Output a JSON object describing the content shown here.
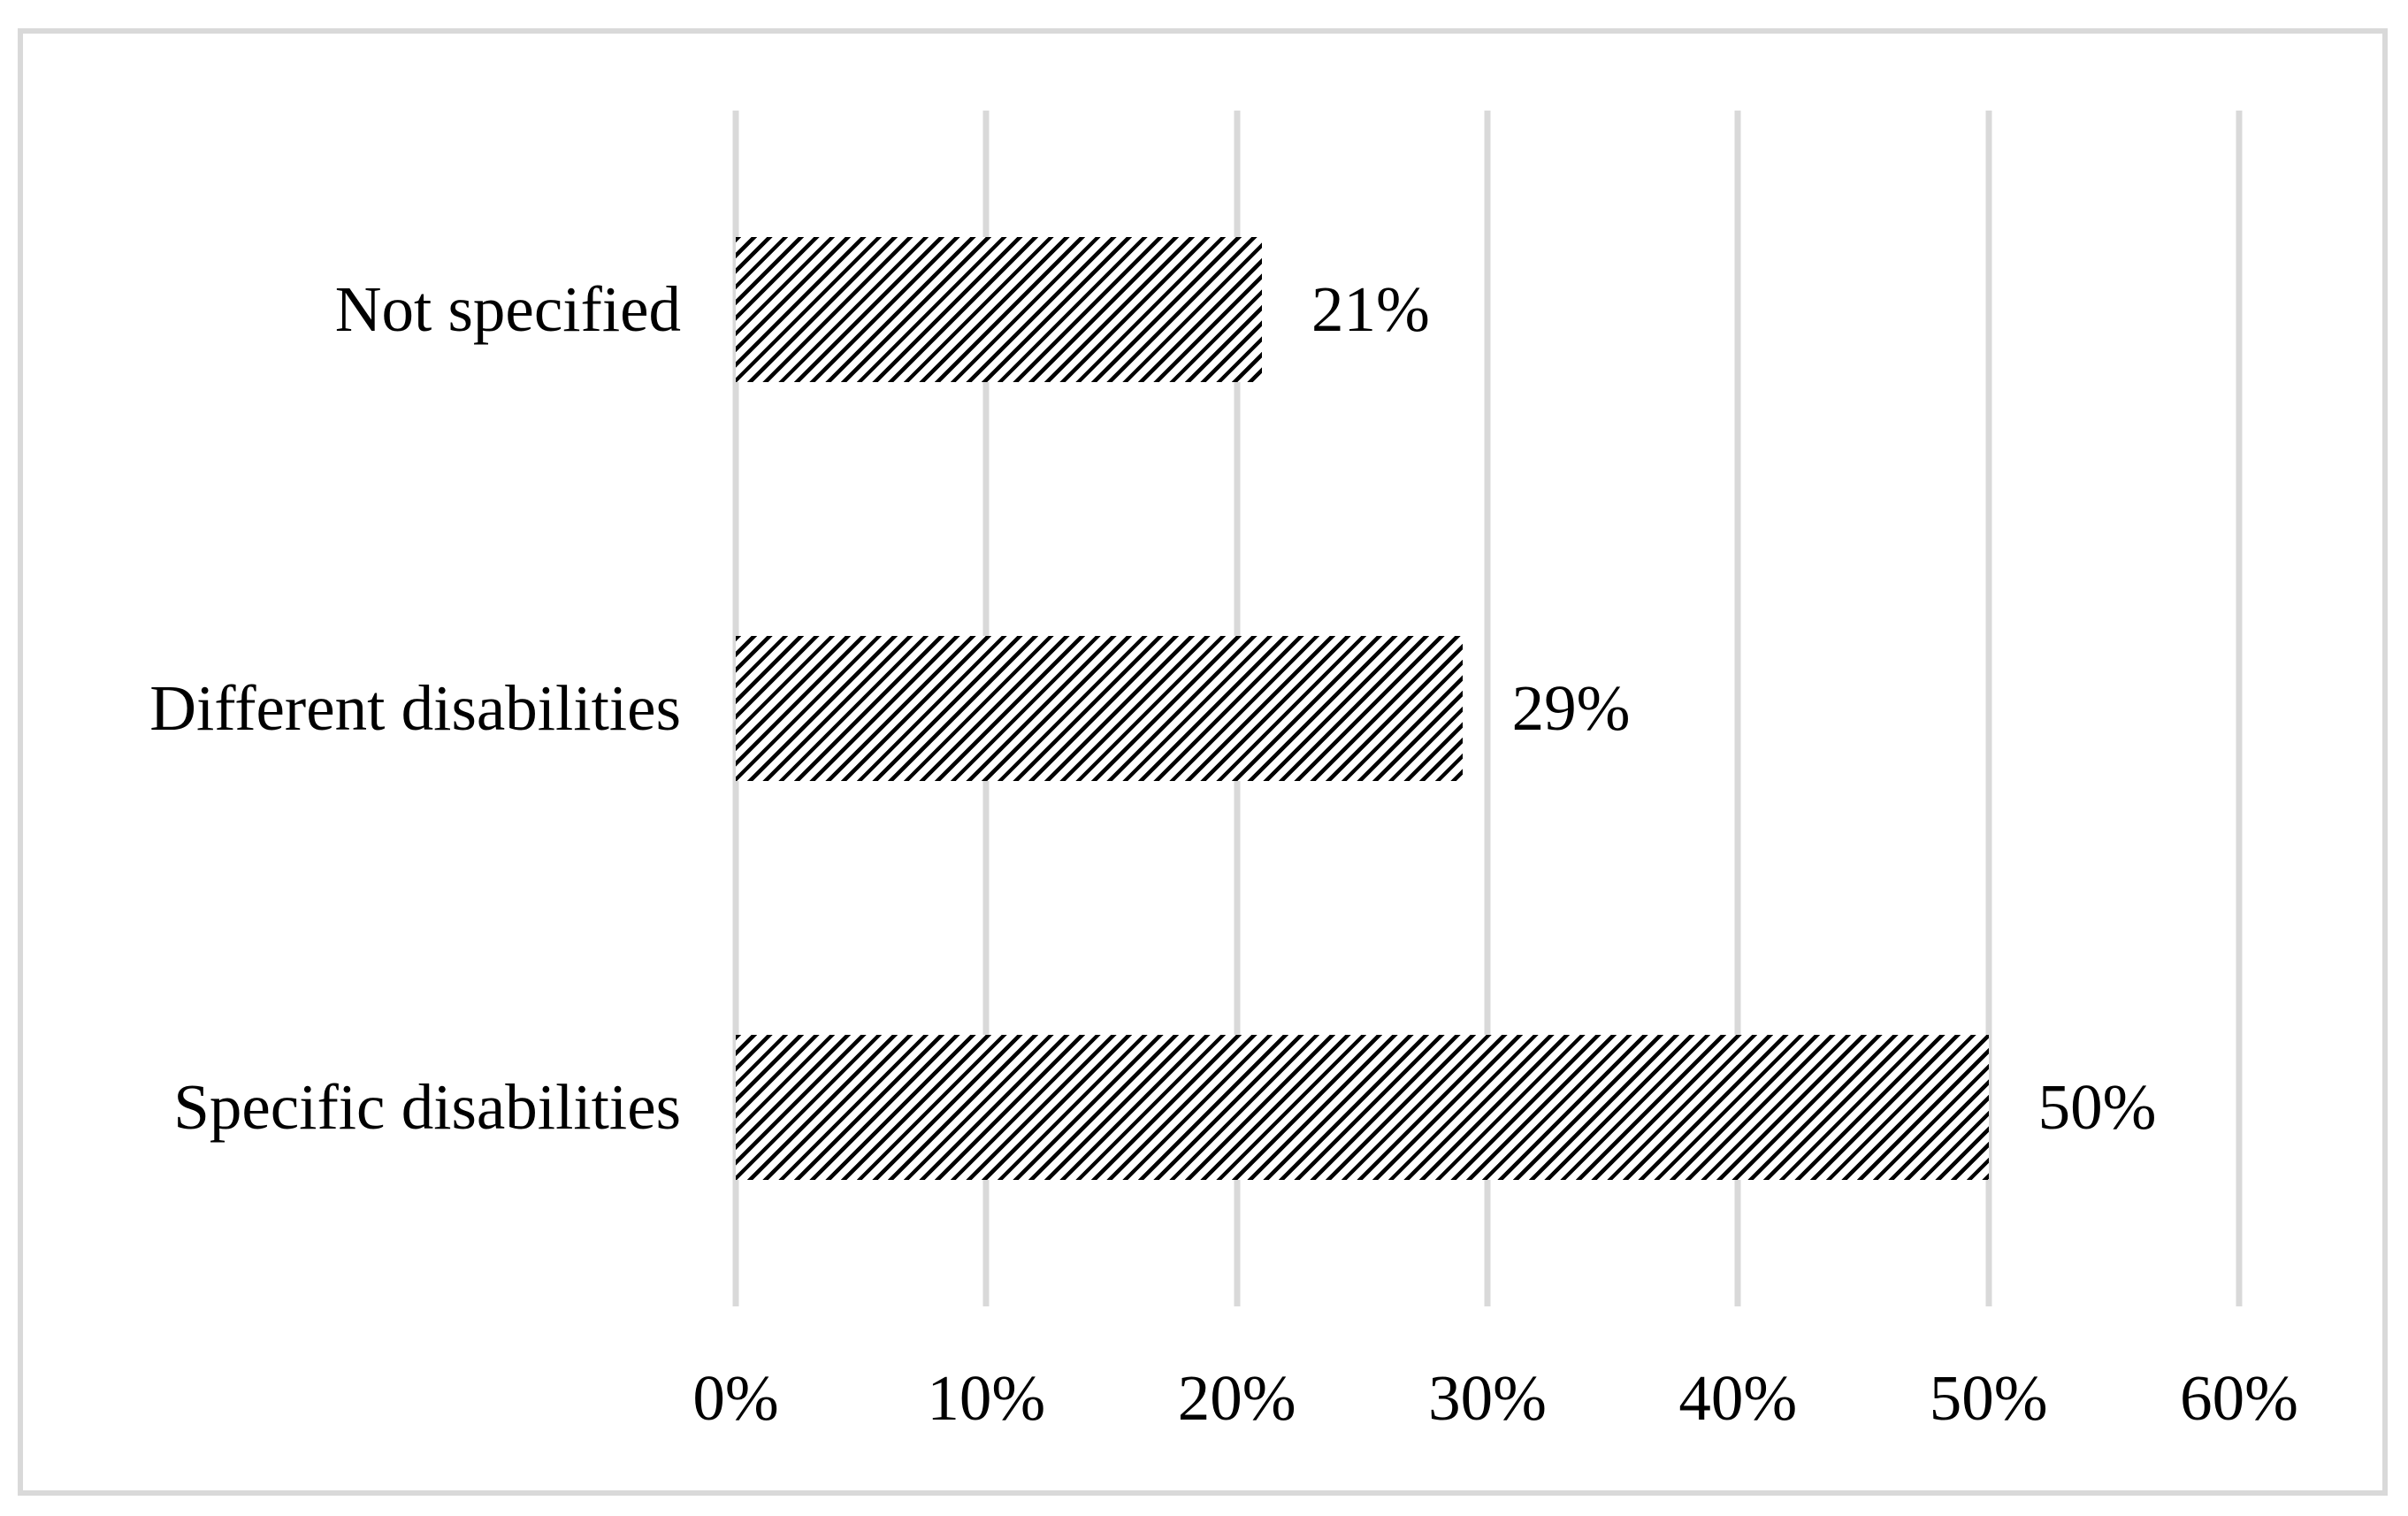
{
  "figure": {
    "kind": "statistical-figure",
    "title": "",
    "legend": "none"
  },
  "chart_data": {
    "type": "bar",
    "orientation": "horizontal",
    "categories": [
      "Not specified",
      "Different disabilities",
      "Specific disabilities"
    ],
    "values": [
      21,
      29,
      50
    ],
    "data_labels": [
      "21%",
      "29%",
      "50%"
    ],
    "x_ticks": [
      "0%",
      "10%",
      "20%",
      "30%",
      "40%",
      "50%",
      "60%"
    ],
    "xlim": [
      0,
      60
    ],
    "xlabel": "",
    "ylabel": "",
    "title": "",
    "grid": "vertical-gridlines",
    "legend_position": "none",
    "bar_style": "black-diagonal-hatch-on-white",
    "colors": {
      "hatch": "#000000",
      "gridline": "#d9d9d9",
      "frame_border": "#d9d9d9",
      "background": "#ffffff",
      "text": "#000000"
    }
  }
}
